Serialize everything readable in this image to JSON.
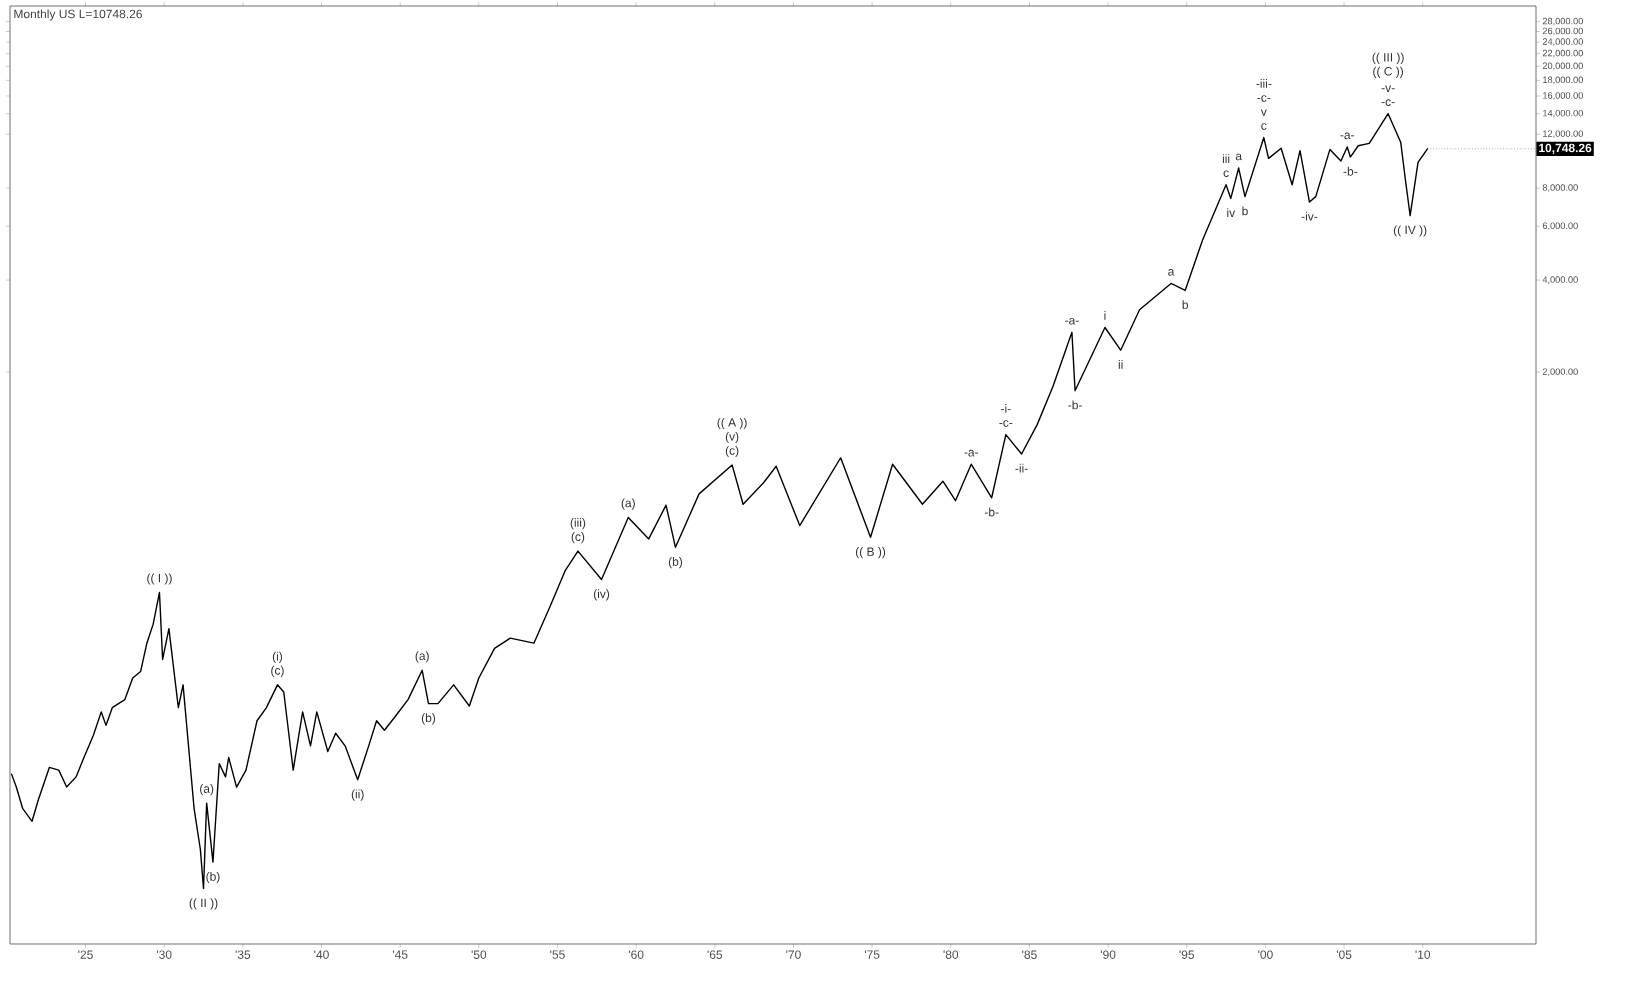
{
  "chart_data": {
    "type": "line",
    "title": "Monthly  US  L=10748.26",
    "color": "#000000",
    "log": "y",
    "xlim": [
      1920.2,
      2017.2
    ],
    "ylim": [
      27,
      31500
    ],
    "xticks": [
      {
        "value": 1925,
        "label": "'25"
      },
      {
        "value": 1930,
        "label": "'30"
      },
      {
        "value": 1935,
        "label": "'35"
      },
      {
        "value": 1940,
        "label": "'40"
      },
      {
        "value": 1945,
        "label": "'45"
      },
      {
        "value": 1950,
        "label": "'50"
      },
      {
        "value": 1955,
        "label": "'55"
      },
      {
        "value": 1960,
        "label": "'60"
      },
      {
        "value": 1965,
        "label": "'65"
      },
      {
        "value": 1970,
        "label": "'70"
      },
      {
        "value": 1975,
        "label": "'75"
      },
      {
        "value": 1980,
        "label": "'80"
      },
      {
        "value": 1985,
        "label": "'85"
      },
      {
        "value": 1990,
        "label": "'90"
      },
      {
        "value": 1995,
        "label": "'95"
      },
      {
        "value": 2000,
        "label": "'00"
      },
      {
        "value": 2005,
        "label": "'05"
      },
      {
        "value": 2010,
        "label": "'10"
      }
    ],
    "yticks": [
      {
        "value": 2000,
        "label": "2,000.00"
      },
      {
        "value": 4000,
        "label": "4,000.00"
      },
      {
        "value": 6000,
        "label": "6,000.00"
      },
      {
        "value": 8000,
        "label": "8,000.00"
      },
      {
        "value": 12000,
        "label": "12,000.00"
      },
      {
        "value": 14000,
        "label": "14,000.00"
      },
      {
        "value": 16000,
        "label": "16,000.00"
      },
      {
        "value": 18000,
        "label": "18,000.00"
      },
      {
        "value": 20000,
        "label": "20,000.00"
      },
      {
        "value": 22000,
        "label": "22,000.00"
      },
      {
        "value": 24000,
        "label": "24,000.00"
      },
      {
        "value": 26000,
        "label": "26,000.00"
      },
      {
        "value": 28000,
        "label": "28,000.00"
      }
    ],
    "x": [
      1920.3,
      1920.6,
      1921.0,
      1921.6,
      1922.0,
      1922.7,
      1923.3,
      1923.8,
      1924.4,
      1924.9,
      1925.5,
      1926.0,
      1926.3,
      1926.7,
      1927.5,
      1928.0,
      1928.5,
      1928.9,
      1929.3,
      1929.7,
      1929.9,
      1930.3,
      1930.9,
      1931.2,
      1931.9,
      1932.3,
      1932.5,
      1932.7,
      1933.1,
      1933.5,
      1933.9,
      1934.1,
      1934.6,
      1935.2,
      1935.9,
      1936.5,
      1937.2,
      1937.6,
      1938.2,
      1938.8,
      1939.3,
      1939.7,
      1940.4,
      1940.9,
      1941.5,
      1942.3,
      1943.0,
      1943.5,
      1944.0,
      1944.7,
      1945.5,
      1946.4,
      1946.8,
      1947.4,
      1948.4,
      1949.4,
      1950.0,
      1951.0,
      1952.0,
      1953.5,
      1954.5,
      1955.5,
      1956.3,
      1957.8,
      1959.5,
      1960.8,
      1961.9,
      1962.5,
      1964.0,
      1966.1,
      1966.8,
      1968.1,
      1968.9,
      1970.4,
      1973.0,
      1974.9,
      1976.3,
      1978.2,
      1979.5,
      1980.3,
      1981.3,
      1982.6,
      1983.5,
      1984.5,
      1985.5,
      1986.5,
      1987.7,
      1987.9,
      1989.8,
      1990.8,
      1992.0,
      1994.0,
      1994.9,
      1996.0,
      1997.5,
      1997.8,
      1998.3,
      1998.7,
      1999.9,
      2000.2,
      2001.0,
      2001.7,
      2002.2,
      2002.8,
      2003.2,
      2004.1,
      2004.8,
      2005.2,
      2005.4,
      2005.9,
      2006.6,
      2007.8,
      2008.6,
      2008.9,
      2009.2,
      2009.7,
      2010.3
    ],
    "values": [
      97,
      88,
      75,
      68,
      80,
      102,
      100,
      88,
      95,
      110,
      130,
      155,
      140,
      160,
      170,
      200,
      210,
      260,
      300,
      381,
      230,
      290,
      160,
      190,
      75,
      55,
      41,
      78,
      50,
      105,
      95,
      110,
      88,
      100,
      145,
      160,
      190,
      180,
      100,
      155,
      120,
      155,
      115,
      132,
      120,
      93,
      120,
      145,
      135,
      150,
      170,
      212,
      165,
      165,
      190,
      162,
      200,
      250,
      270,
      260,
      340,
      450,
      520,
      420,
      670,
      570,
      735,
      535,
      800,
      995,
      740,
      870,
      985,
      630,
      1050,
      577,
      1000,
      740,
      880,
      760,
      1000,
      777,
      1250,
      1080,
      1350,
      1800,
      2700,
      1740,
      2800,
      2360,
      3200,
      3900,
      3700,
      5400,
      8200,
      7400,
      9300,
      7500,
      11700,
      10000,
      10800,
      8200,
      10600,
      7200,
      7500,
      10700,
      9800,
      10900,
      10100,
      11000,
      11200,
      14000,
      11300,
      8500,
      6500,
      9700,
      10748.26
    ],
    "annotations": [
      {
        "text": "10,748.26",
        "x": 2010.3,
        "y": 10748.26
      },
      {
        "text": "(( I ))",
        "x": 1929.7,
        "y": 381
      },
      {
        "text": "(( II ))",
        "x": 1932.5,
        "y": 41
      },
      {
        "text": "(a)",
        "x": 1932.7,
        "y": 78
      },
      {
        "text": "(b)",
        "x": 1933.1,
        "y": 50
      },
      {
        "text": "(i)",
        "x": 1937.2,
        "y": 190
      },
      {
        "text": "(c)",
        "x": 1937.2,
        "y": 190
      },
      {
        "text": "(ii)",
        "x": 1942.3,
        "y": 93
      },
      {
        "text": "(a)",
        "x": 1946.4,
        "y": 212
      },
      {
        "text": "(b)",
        "x": 1946.8,
        "y": 165
      },
      {
        "text": "(iii)",
        "x": 1956.3,
        "y": 520
      },
      {
        "text": "(c)",
        "x": 1956.3,
        "y": 520
      },
      {
        "text": "(iv)",
        "x": 1957.8,
        "y": 420
      },
      {
        "text": "(a)",
        "x": 1959.5,
        "y": 670
      },
      {
        "text": "(b)",
        "x": 1962.5,
        "y": 535
      },
      {
        "text": "(( A ))",
        "x": 1966.1,
        "y": 995
      },
      {
        "text": "(v)",
        "x": 1966.1,
        "y": 995
      },
      {
        "text": "(c)",
        "x": 1966.1,
        "y": 995
      },
      {
        "text": "(( B ))",
        "x": 1974.9,
        "y": 577
      },
      {
        "text": "-a-",
        "x": 1981.3,
        "y": 1000
      },
      {
        "text": "-b-",
        "x": 1982.6,
        "y": 777
      },
      {
        "text": "-i-",
        "x": 1983.5,
        "y": 1250
      },
      {
        "text": "-c-",
        "x": 1983.5,
        "y": 1250
      },
      {
        "text": "-ii-",
        "x": 1984.5,
        "y": 1080
      },
      {
        "text": "-a-",
        "x": 1987.7,
        "y": 2700
      },
      {
        "text": "-b-",
        "x": 1987.9,
        "y": 1740
      },
      {
        "text": "i",
        "x": 1989.8,
        "y": 2800
      },
      {
        "text": "ii",
        "x": 1990.8,
        "y": 2360
      },
      {
        "text": "a",
        "x": 1994.0,
        "y": 3900
      },
      {
        "text": "b",
        "x": 1994.9,
        "y": 3700
      },
      {
        "text": "iii",
        "x": 1997.5,
        "y": 8200
      },
      {
        "text": "c",
        "x": 1997.5,
        "y": 8200
      },
      {
        "text": "iv",
        "x": 1997.8,
        "y": 7400
      },
      {
        "text": "a",
        "x": 1998.3,
        "y": 9300
      },
      {
        "text": "b",
        "x": 1998.7,
        "y": 7500
      },
      "-iii-",
      {
        "text": "-c-",
        "x": 1999.9,
        "y": 11700
      },
      {
        "text": "v",
        "x": 1999.9,
        "y": 11700
      },
      {
        "text": "c",
        "x": 1999.9,
        "y": 11700
      },
      {
        "text": "-iv-",
        "x": 2002.8,
        "y": 7200
      },
      {
        "text": "-a-",
        "x": 2005.2,
        "y": 10900
      },
      {
        "text": "-b-",
        "x": 2005.4,
        "y": 10100
      },
      "(( III ))",
      {
        "text": "(( C ))",
        "x": 2007.8,
        "y": 14000
      },
      {
        "text": "-v-",
        "x": 2007.8,
        "y": 14000
      },
      {
        "text": "-c-",
        "x": 2007.8,
        "y": 14000
      },
      {
        "text": "(( IV ))",
        "x": 2009.2,
        "y": 6500
      }
    ]
  }
}
